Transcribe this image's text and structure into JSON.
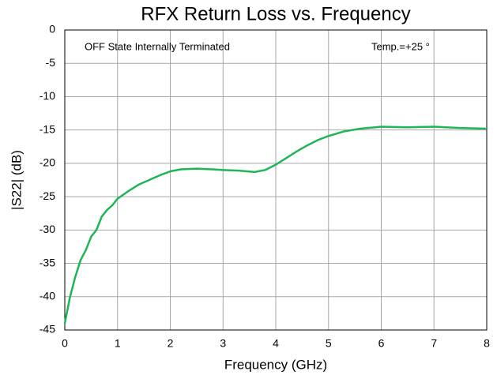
{
  "chart_data": {
    "type": "line",
    "title": "RFX Return Loss vs. Frequency",
    "xlabel": "Frequency (GHz)",
    "ylabel": "|S22| (dB)",
    "annotations": [
      "OFF State Internally Terminated",
      "Temp.=+25 °"
    ],
    "x": [
      0,
      0.05,
      0.1,
      0.2,
      0.3,
      0.4,
      0.5,
      0.6,
      0.7,
      0.8,
      0.9,
      1.0,
      1.2,
      1.4,
      1.6,
      1.8,
      2.0,
      2.2,
      2.5,
      2.8,
      3.0,
      3.3,
      3.6,
      3.8,
      4.0,
      4.2,
      4.4,
      4.6,
      4.8,
      5.0,
      5.3,
      5.6,
      6.0,
      6.5,
      7.0,
      7.5,
      8.0
    ],
    "series": [
      {
        "name": "S22",
        "color": "#1fb455",
        "values": [
          -44,
          -42,
          -40,
          -37,
          -34.5,
          -33,
          -31,
          -30,
          -28,
          -27,
          -26.3,
          -25.3,
          -24.2,
          -23.2,
          -22.5,
          -21.8,
          -21.2,
          -20.9,
          -20.8,
          -20.9,
          -21,
          -21.1,
          -21.3,
          -21,
          -20.2,
          -19.2,
          -18.2,
          -17.3,
          -16.5,
          -15.9,
          -15.2,
          -14.8,
          -14.5,
          -14.6,
          -14.5,
          -14.7,
          -14.8
        ]
      }
    ],
    "xlim": [
      0,
      8
    ],
    "xticks": [
      0,
      1,
      2,
      3,
      4,
      5,
      6,
      7,
      8
    ],
    "ylim": [
      -45,
      0
    ],
    "yticks": [
      0,
      -5,
      -10,
      -15,
      -20,
      -25,
      -30,
      -35,
      -40,
      -45
    ],
    "grid": true
  }
}
